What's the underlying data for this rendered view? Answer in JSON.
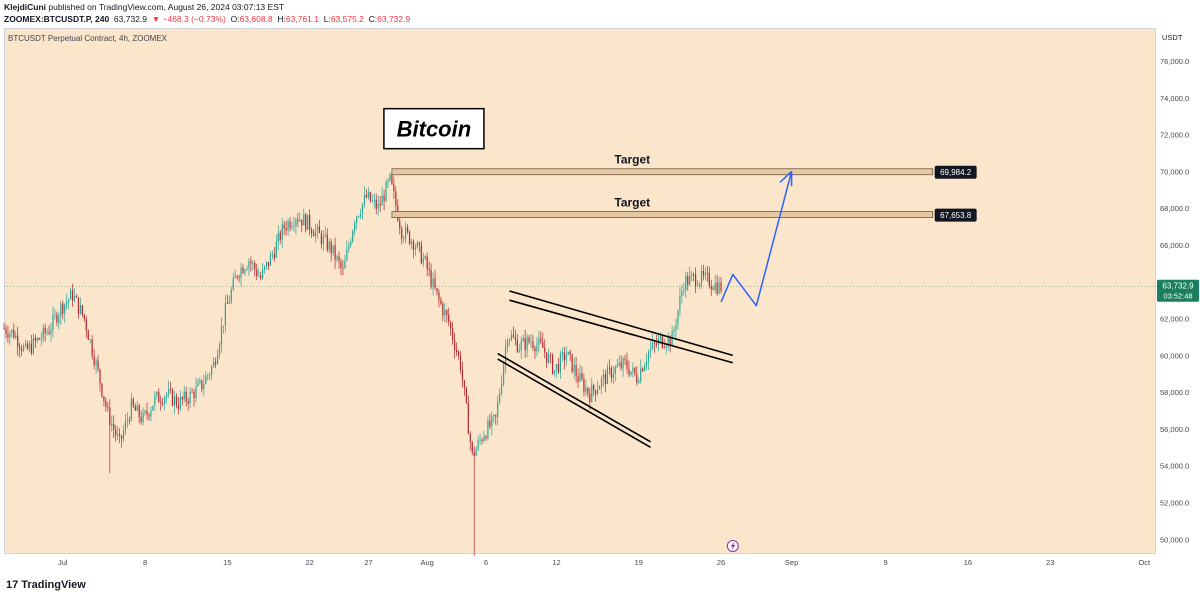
{
  "header": {
    "author": "KlejdiCuni",
    "published_text": "published on TradingView.com, August 26, 2024 03:07:13 EST",
    "symbol": "ZOOMEX:BTCUSDT.P, 240",
    "last": "63,732.9",
    "change": "▼ −468.3 (−0.73%)",
    "o_label": "O:",
    "o_value": "63,608.8",
    "h_label": "H:",
    "h_value": "63,761.1",
    "l_label": "L:",
    "l_value": "63,575.2",
    "c_label": "C:",
    "c_value": "63,732.9"
  },
  "plot_title": "BTCUSDT Perpetual Contract, 4h, ZOOMEX",
  "footer": {
    "brand": "TradingView",
    "mark": "17"
  },
  "colors": {
    "background": "#fbe5cb",
    "up": "#26a69a",
    "up_bright": "#22ab94",
    "down": "#b2282e",
    "target_box": "#e6c9a2",
    "projection": "#2962ff",
    "label_bg": "#131722",
    "price_tag": "#1b7f5e"
  },
  "chart_data": {
    "type": "candlestick",
    "title": "Bitcoin",
    "currency": "USDT",
    "ylim": [
      49200,
      77800
    ],
    "y_ticks": [
      50000,
      52000,
      54000,
      56000,
      58000,
      60000,
      62000,
      64000,
      66000,
      68000,
      70000,
      72000,
      74000,
      76000
    ],
    "y_tick_labels": [
      "50,000.0",
      "52,000.0",
      "54,000.0",
      "56,000.0",
      "58,000.0",
      "60,000.0",
      "62,000.0",
      "64,000.0",
      "66,000.0",
      "68,000.0",
      "70,000.0",
      "72,000.0",
      "74,000.0",
      "76,000.0"
    ],
    "x_start": "2024-06-26",
    "x_end": "2024-10-02",
    "x_ticks": [
      {
        "date": "2024-07-01",
        "label": "Jul"
      },
      {
        "date": "2024-07-08",
        "label": "8"
      },
      {
        "date": "2024-07-15",
        "label": "15"
      },
      {
        "date": "2024-07-22",
        "label": "22"
      },
      {
        "date": "2024-07-27",
        "label": "27"
      },
      {
        "date": "2024-08-01",
        "label": "Aug"
      },
      {
        "date": "2024-08-06",
        "label": "6"
      },
      {
        "date": "2024-08-12",
        "label": "12"
      },
      {
        "date": "2024-08-19",
        "label": "19"
      },
      {
        "date": "2024-08-26",
        "label": "26"
      },
      {
        "date": "2024-09-01",
        "label": "Sep"
      },
      {
        "date": "2024-09-09",
        "label": "9"
      },
      {
        "date": "2024-09-16",
        "label": "16"
      },
      {
        "date": "2024-09-23",
        "label": "23"
      },
      {
        "date": "2024-10-01",
        "label": "Oct"
      }
    ],
    "price_path": [
      [
        "2024-06-26",
        61500
      ],
      [
        "2024-06-27",
        61200
      ],
      [
        "2024-06-28",
        60200
      ],
      [
        "2024-06-29",
        60800
      ],
      [
        "2024-06-30",
        61400
      ],
      [
        "2024-07-01",
        62600
      ],
      [
        "2024-07-02",
        63300
      ],
      [
        "2024-07-03",
        62000
      ],
      [
        "2024-07-04",
        59500
      ],
      [
        "2024-07-05",
        56800
      ],
      [
        "2024-07-06",
        55200
      ],
      [
        "2024-07-07",
        57200
      ],
      [
        "2024-07-08",
        56500
      ],
      [
        "2024-07-09",
        57600
      ],
      [
        "2024-07-10",
        57900
      ],
      [
        "2024-07-11",
        57400
      ],
      [
        "2024-07-12",
        57800
      ],
      [
        "2024-07-13",
        58400
      ],
      [
        "2024-07-14",
        59500
      ],
      [
        "2024-07-15",
        62400
      ],
      [
        "2024-07-16",
        64500
      ],
      [
        "2024-07-17",
        65200
      ],
      [
        "2024-07-18",
        64200
      ],
      [
        "2024-07-19",
        65500
      ],
      [
        "2024-07-20",
        67000
      ],
      [
        "2024-07-21",
        67600
      ],
      [
        "2024-07-22",
        67200
      ],
      [
        "2024-07-23",
        66500
      ],
      [
        "2024-07-24",
        65800
      ],
      [
        "2024-07-25",
        64500
      ],
      [
        "2024-07-26",
        67500
      ],
      [
        "2024-07-27",
        68600
      ],
      [
        "2024-07-28",
        68000
      ],
      [
        "2024-07-29",
        69500
      ],
      [
        "2024-07-30",
        66800
      ],
      [
        "2024-07-31",
        66200
      ],
      [
        "2024-08-01",
        65000
      ],
      [
        "2024-08-02",
        63200
      ],
      [
        "2024-08-03",
        61800
      ],
      [
        "2024-08-04",
        59500
      ],
      [
        "2024-08-05",
        54500
      ],
      [
        "2024-08-06",
        55800
      ],
      [
        "2024-08-07",
        56500
      ],
      [
        "2024-08-08",
        61200
      ],
      [
        "2024-08-09",
        60500
      ],
      [
        "2024-08-10",
        60800
      ],
      [
        "2024-08-11",
        60400
      ],
      [
        "2024-08-12",
        59200
      ],
      [
        "2024-08-13",
        60100
      ],
      [
        "2024-08-14",
        58800
      ],
      [
        "2024-08-15",
        57900
      ],
      [
        "2024-08-16",
        58600
      ],
      [
        "2024-08-17",
        59200
      ],
      [
        "2024-08-18",
        59500
      ],
      [
        "2024-08-19",
        58800
      ],
      [
        "2024-08-20",
        60200
      ],
      [
        "2024-08-21",
        60800
      ],
      [
        "2024-08-22",
        60900
      ],
      [
        "2024-08-23",
        64000
      ],
      [
        "2024-08-24",
        64200
      ],
      [
        "2024-08-25",
        64100
      ],
      [
        "2024-08-26",
        63733
      ]
    ],
    "extremes": [
      [
        "2024-07-05",
        53600
      ],
      [
        "2024-07-29",
        70000
      ],
      [
        "2024-08-05",
        49100
      ]
    ],
    "last_price": 63732.9,
    "last_price_label": "63,732.9",
    "countdown": "03:52:48",
    "targets": [
      {
        "label": "Target",
        "price": 69984.2,
        "price_label": "69,984.2",
        "from": "2024-07-29",
        "to": "2024-09-13"
      },
      {
        "label": "Target",
        "price": 67653.8,
        "price_label": "67,653.8",
        "from": "2024-07-29",
        "to": "2024-09-13"
      }
    ],
    "wedge_lines": [
      {
        "from": [
          "2024-08-08",
          63000
        ],
        "to": [
          "2024-08-27",
          59600
        ]
      },
      {
        "from": [
          "2024-08-08",
          63500
        ],
        "to": [
          "2024-08-27",
          60000
        ]
      },
      {
        "from": [
          "2024-08-07",
          60100
        ],
        "to": [
          "2024-08-20",
          55300
        ]
      },
      {
        "from": [
          "2024-08-07",
          59800
        ],
        "to": [
          "2024-08-20",
          55000
        ]
      }
    ],
    "projection_path": [
      [
        "2024-08-26",
        62900
      ],
      [
        "2024-08-27",
        64400
      ],
      [
        "2024-08-29",
        62700
      ],
      [
        "2024-09-01",
        70000
      ]
    ],
    "projection_arrowheads": [
      [
        "2024-08-31",
        69400
      ],
      [
        "2024-09-01",
        69200
      ]
    ]
  }
}
